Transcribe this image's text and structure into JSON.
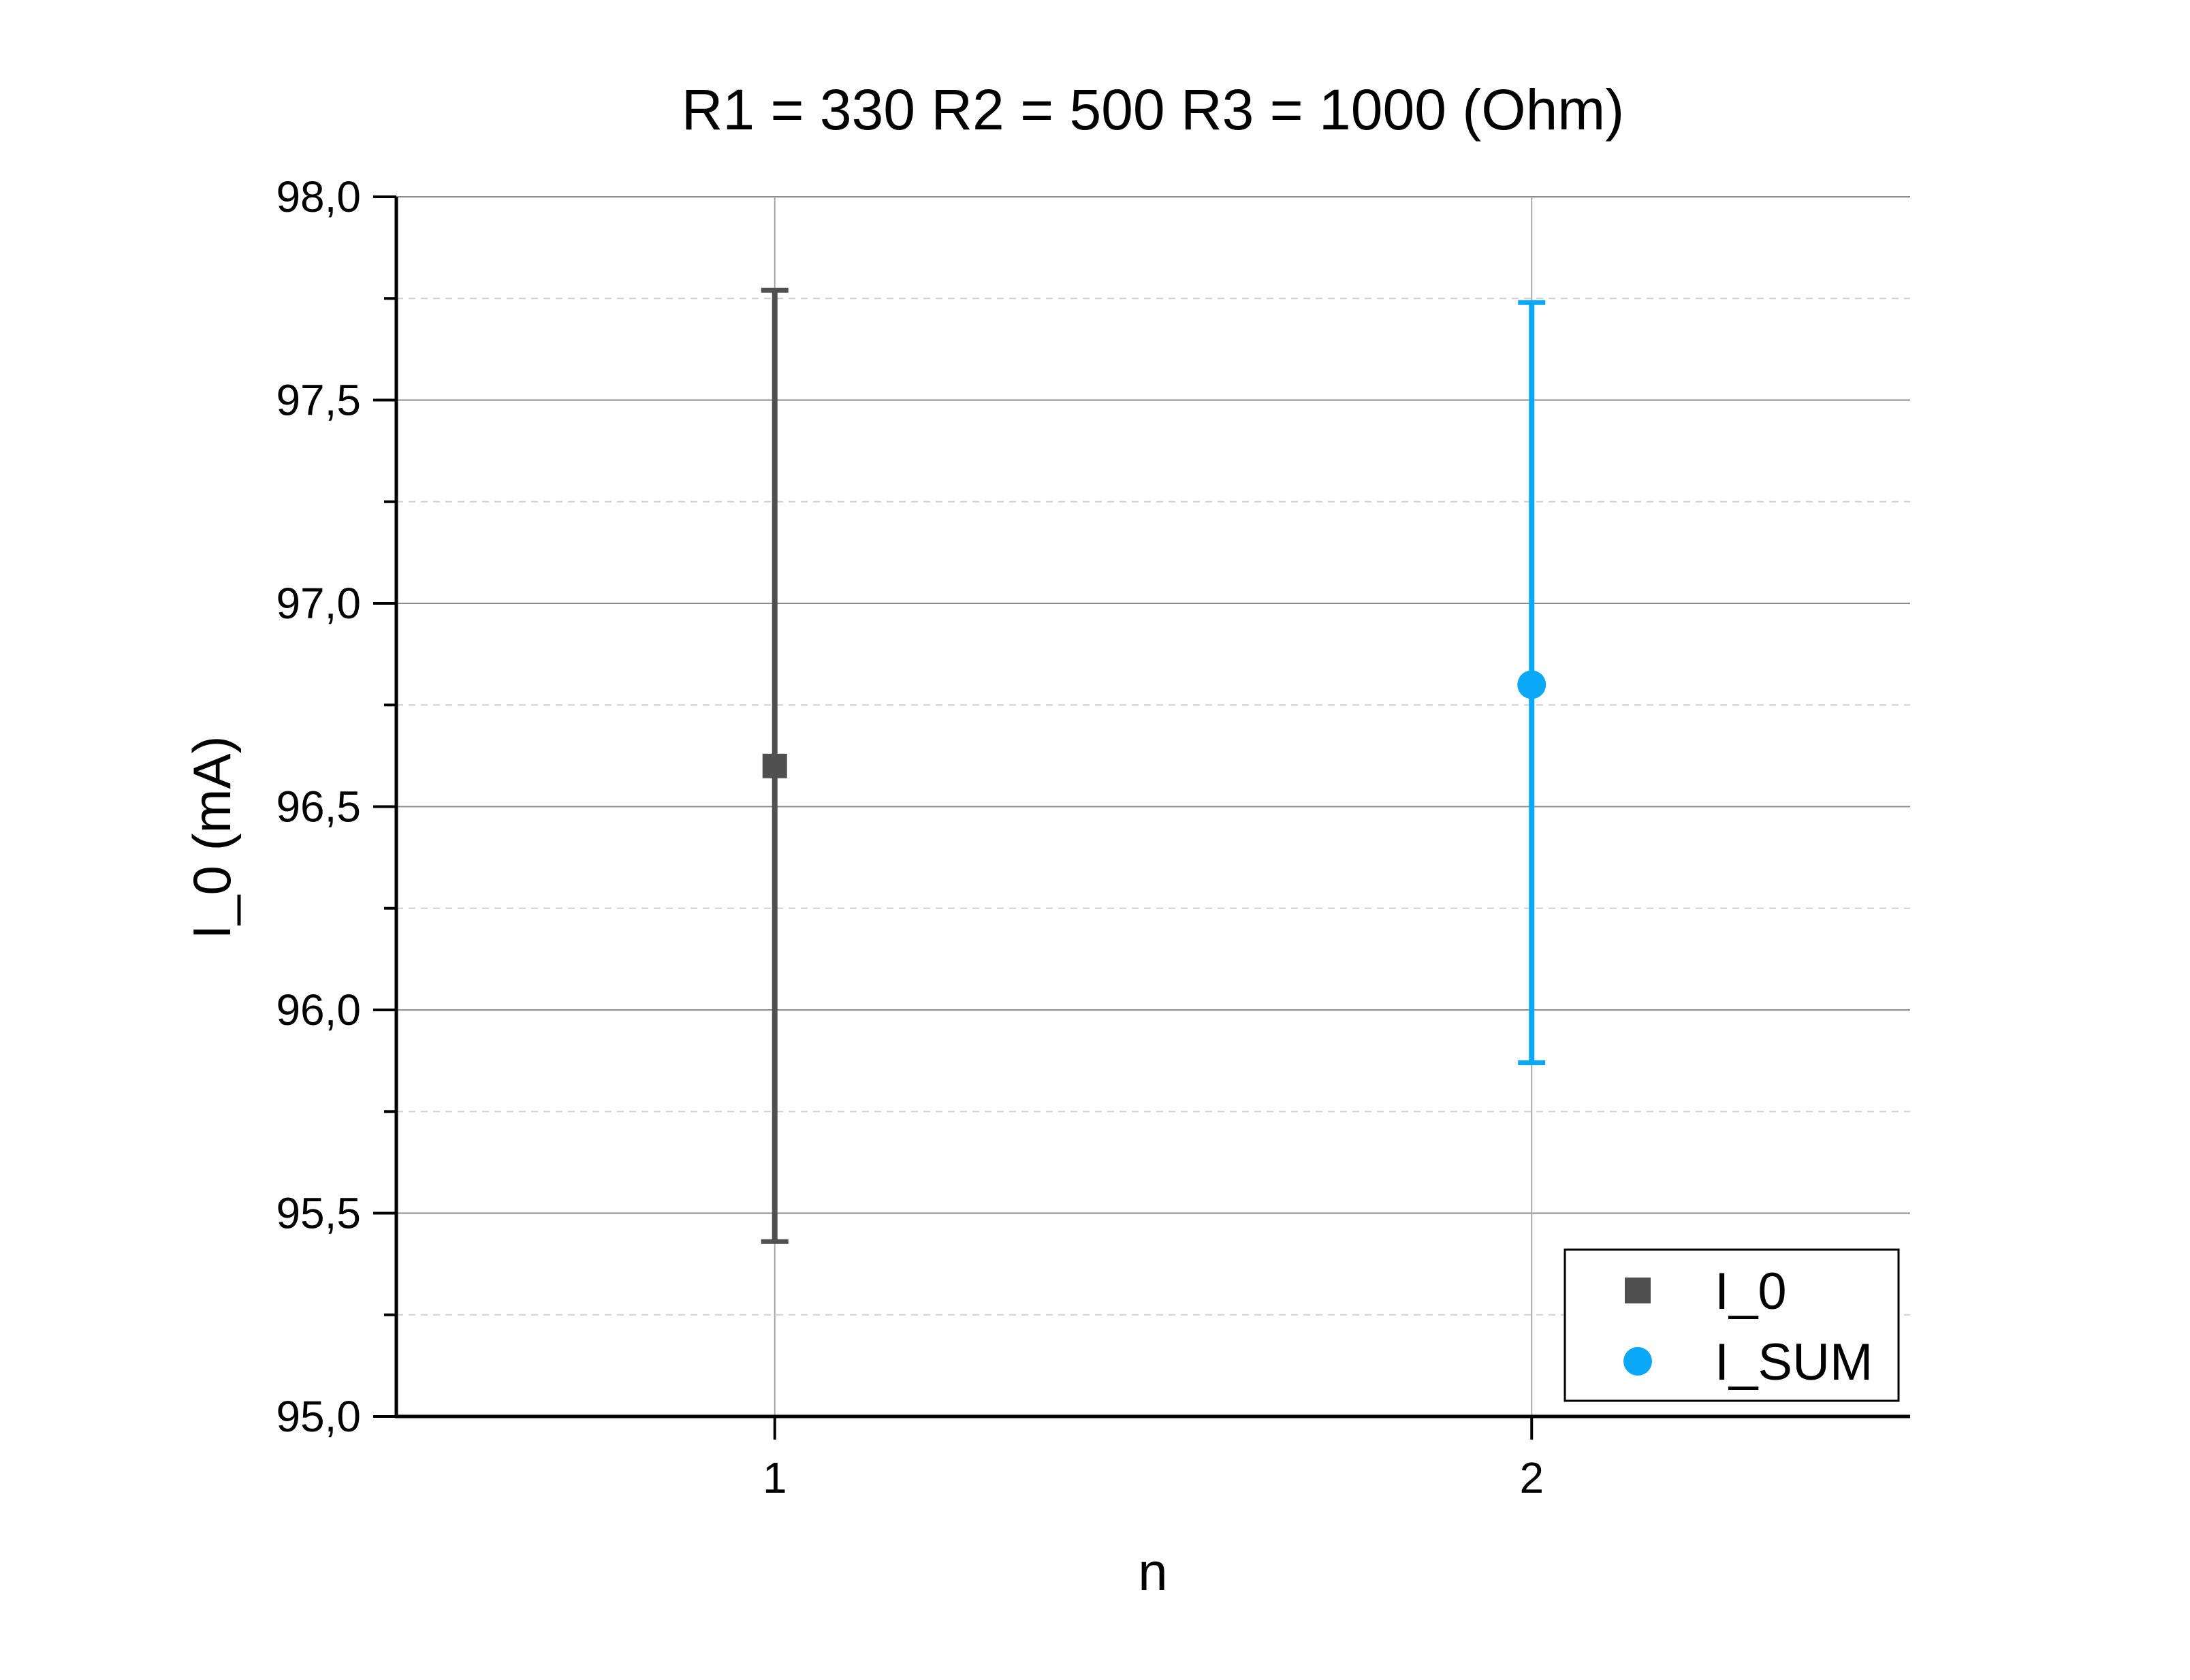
{
  "chart_data": {
    "type": "scatter",
    "title": "R1 = 330 R2 = 500 R3 = 1000 (Ohm)",
    "xlabel": "n",
    "ylabel": "I_0 (mA)",
    "xlim": [
      0.5,
      2.5
    ],
    "ylim": [
      95.0,
      98.0
    ],
    "x_ticks": [
      1,
      2
    ],
    "x_tick_labels": [
      "1",
      "2"
    ],
    "y_ticks": [
      95.0,
      95.5,
      96.0,
      96.5,
      97.0,
      97.5,
      98.0
    ],
    "y_tick_labels": [
      "95,0",
      "95,5",
      "96,0",
      "96,5",
      "97,0",
      "97,5",
      "98,0"
    ],
    "y_minor_ticks": [
      95.25,
      95.75,
      96.25,
      96.75,
      97.25,
      97.75
    ],
    "grid": true,
    "legend_position": "bottom-right",
    "series": [
      {
        "name": "I_0",
        "marker": "square",
        "color": "#505050",
        "x": [
          1
        ],
        "y": [
          96.6
        ],
        "y_err_low": [
          95.43
        ],
        "y_err_high": [
          97.77
        ]
      },
      {
        "name": "I_SUM",
        "marker": "circle",
        "color": "#0aa8f7",
        "x": [
          2
        ],
        "y": [
          96.8
        ],
        "y_err_low": [
          95.87
        ],
        "y_err_high": [
          97.74
        ]
      }
    ]
  }
}
